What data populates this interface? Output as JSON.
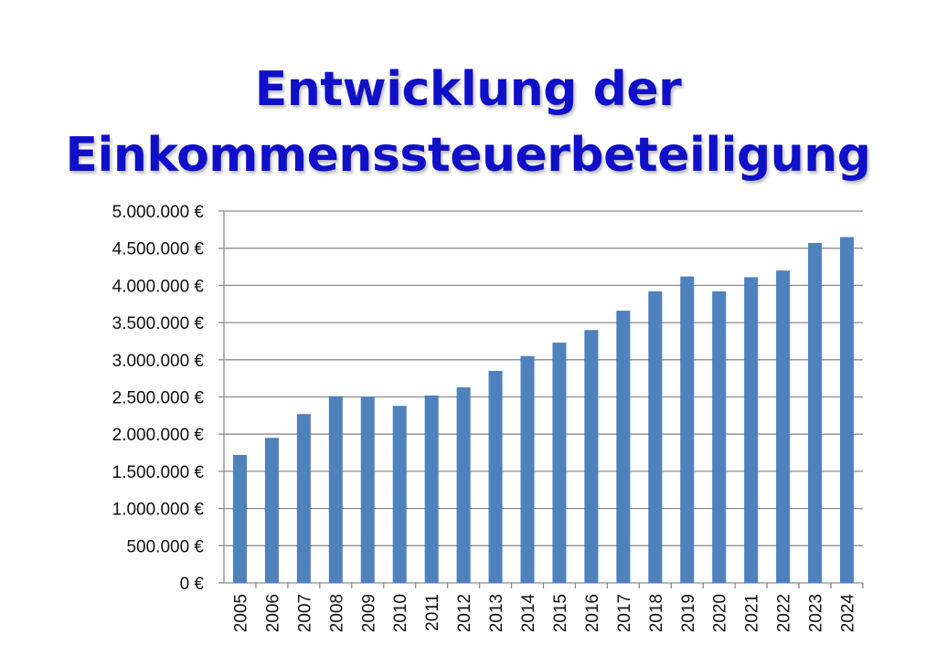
{
  "title_lines": [
    "Entwicklung der",
    "Einkommenssteuerbeteiligung"
  ],
  "chart_data": {
    "type": "bar",
    "categories": [
      "2005",
      "2006",
      "2007",
      "2008",
      "2009",
      "2010",
      "2011",
      "2012",
      "2013",
      "2014",
      "2015",
      "2016",
      "2017",
      "2018",
      "2019",
      "2020",
      "2021",
      "2022",
      "2023",
      "2024"
    ],
    "values": [
      1720000,
      1950000,
      2270000,
      2510000,
      2500000,
      2380000,
      2520000,
      2630000,
      2850000,
      3050000,
      3230000,
      3400000,
      3660000,
      3920000,
      4120000,
      3920000,
      4110000,
      4200000,
      4570000,
      4650000
    ],
    "ylim": [
      0,
      5000000
    ],
    "yticks": [
      0,
      500000,
      1000000,
      1500000,
      2000000,
      2500000,
      3000000,
      3500000,
      4000000,
      4500000,
      5000000
    ],
    "ytick_labels": [
      "0 €",
      "500.000 €",
      "1.000.000 €",
      "1.500.000 €",
      "2.000.000 €",
      "2.500.000 €",
      "3.000.000 €",
      "3.500.000 €",
      "4.000.000 €",
      "4.500.000 €",
      "5.000.000 €"
    ],
    "grid": true,
    "bar_color": "#4f81bd",
    "grid_color": "#8c8c8c",
    "title_color": "#1010c8"
  }
}
